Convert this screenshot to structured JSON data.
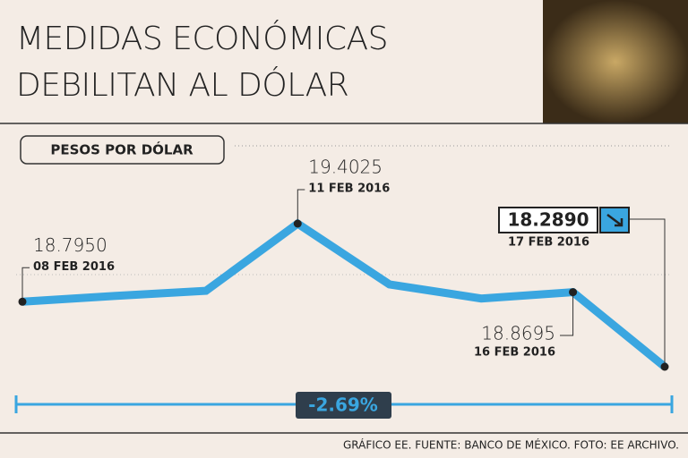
{
  "chart_data": {
    "type": "line",
    "title": "MEDIDAS ECONÓMICAS",
    "title_line2": "DEBILITAN AL DÓLAR",
    "subtitle": "PESOS POR DÓLAR",
    "categories": [
      "08 FEB 2016",
      null,
      null,
      "11 FEB 2016",
      null,
      null,
      "16 FEB 2016",
      "17 FEB 2016"
    ],
    "series": [
      {
        "name": "PESOS POR DÓLAR",
        "color": "#3aa6e0",
        "values": [
          18.795,
          18.84,
          18.88,
          19.4025,
          18.93,
          18.82,
          18.8695,
          18.289
        ],
        "value_labels": [
          "18.7950",
          null,
          null,
          "19.4025",
          null,
          null,
          "18.8695",
          "18.2890"
        ]
      }
    ],
    "change_label": "-2.69%",
    "source": "GRÁFICO EE. FUENTE: BANCO DE MÉXICO. FOTO: EE ARCHIVO."
  }
}
